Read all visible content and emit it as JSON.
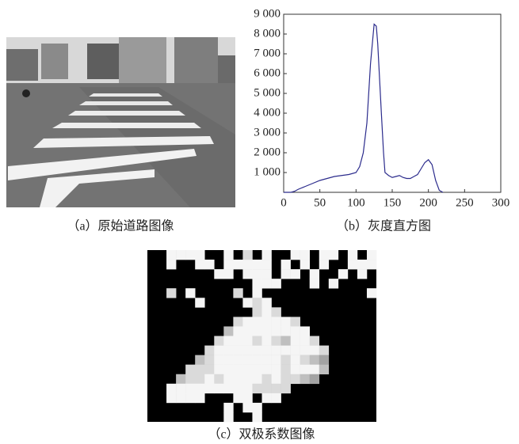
{
  "chart_data": {
    "type": "line",
    "x": [
      0,
      10,
      15,
      20,
      30,
      40,
      50,
      60,
      70,
      80,
      90,
      100,
      105,
      110,
      115,
      120,
      125,
      128,
      130,
      135,
      138,
      140,
      145,
      150,
      155,
      160,
      165,
      170,
      175,
      180,
      185,
      190,
      195,
      200,
      205,
      210,
      215,
      220
    ],
    "series": [
      {
        "color": "#2b2b8c",
        "values": [
          0,
          0,
          50,
          150,
          300,
          450,
          600,
          700,
          800,
          850,
          900,
          1000,
          1300,
          2000,
          3500,
          6500,
          8500,
          8400,
          7500,
          4000,
          2000,
          1000,
          850,
          750,
          800,
          850,
          750,
          700,
          700,
          800,
          900,
          1200,
          1500,
          1650,
          1400,
          600,
          100,
          0
        ]
      }
    ],
    "xlim": [
      0,
      300
    ],
    "ylim": [
      0,
      9000
    ],
    "xticks": [
      0,
      50,
      100,
      150,
      200,
      250,
      300
    ],
    "yticks": [
      {
        "value": 1000,
        "label": "1 000"
      },
      {
        "value": 2000,
        "label": "2 000"
      },
      {
        "value": 3000,
        "label": "3 000"
      },
      {
        "value": 4000,
        "label": "4 000"
      },
      {
        "value": 5000,
        "label": "5 000"
      },
      {
        "value": 6000,
        "label": "6 000"
      },
      {
        "value": 7000,
        "label": "7 000"
      },
      {
        "value": 8000,
        "label": "8 000"
      },
      {
        "value": 9000,
        "label": "9 000"
      }
    ],
    "caption": "（b）灰度直方图"
  },
  "panels": {
    "a": {
      "caption": "（a）原始道路图像"
    },
    "c": {
      "caption": "（c）双极系数图像"
    }
  }
}
